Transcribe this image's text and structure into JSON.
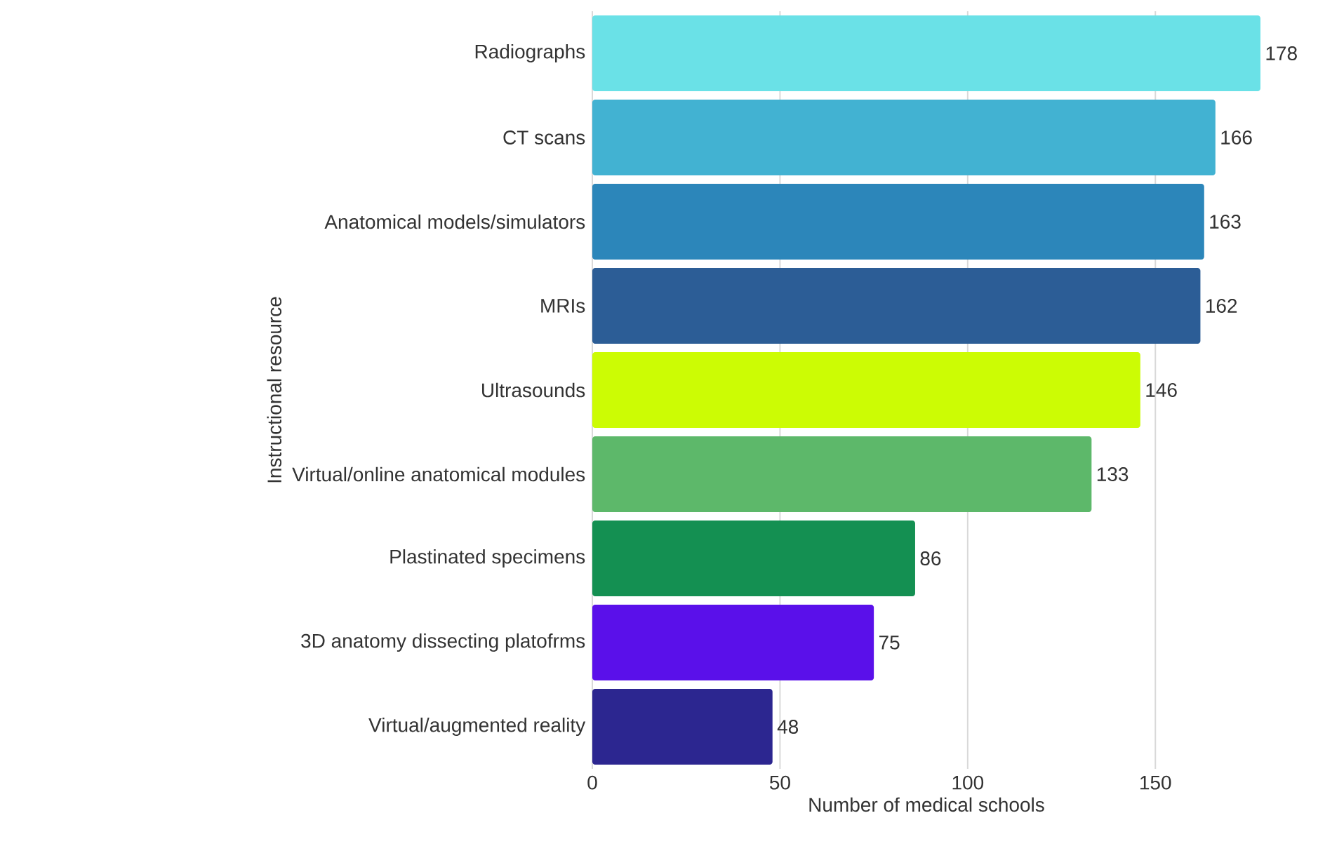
{
  "chart_data": {
    "type": "bar",
    "orientation": "horizontal",
    "xlabel": "Number of medical schools",
    "ylabel": "Instructional resource",
    "categories": [
      "Radiographs",
      "CT scans",
      "Anatomical models/simulators",
      "MRIs",
      "Ultrasounds",
      "Virtual/online anatomical modules",
      "Plastinated specimens",
      "3D anatomy dissecting platofrms",
      "Virtual/augmented reality"
    ],
    "values": [
      178,
      166,
      163,
      162,
      146,
      133,
      86,
      75,
      48
    ],
    "colors": [
      "#6ae1e7",
      "#42b2d2",
      "#2c86ba",
      "#2c5d96",
      "#ccfc04",
      "#5db86a",
      "#149052",
      "#5a10ea",
      "#2c2690"
    ],
    "xlim": [
      0,
      178
    ],
    "xticks": [
      0,
      50,
      100,
      150
    ],
    "grid": "x",
    "data_labels": true
  }
}
